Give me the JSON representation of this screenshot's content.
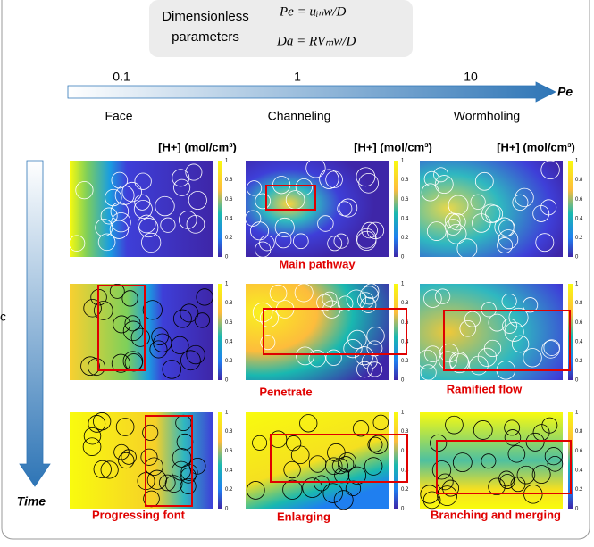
{
  "header": {
    "box_title_line1": "Dimensionless",
    "box_title_line2": "parameters",
    "formula_pe": "Pe = uᵢₙw/D",
    "formula_da": "Da = RVₘw/D"
  },
  "pe_axis": {
    "ticks": [
      "0.1",
      "1",
      "10"
    ],
    "label": "Pe",
    "regimes": [
      "Face",
      "Channeling",
      "Wormholing"
    ]
  },
  "colorbar_titles": [
    "[H+] (mol/cm³)",
    "[H+] (mol/cm³)",
    "[H+] (mol/cm³)"
  ],
  "colorbar_ticks": [
    "1",
    "0.8",
    "0.6",
    "0.4",
    "0.2",
    "0"
  ],
  "time_label": "Time",
  "side_label": "c",
  "annotations": [
    "Main pathway",
    "Penetrate",
    "Ramified flow",
    "Progressing font",
    "Enlarging",
    "Branching and merging"
  ]
}
